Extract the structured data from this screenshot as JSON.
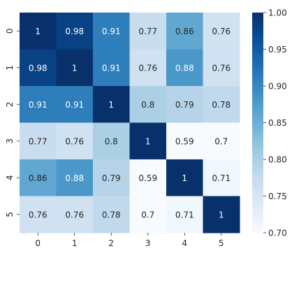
{
  "chart_data": {
    "type": "heatmap",
    "x_labels": [
      "0",
      "1",
      "2",
      "3",
      "4",
      "5"
    ],
    "y_labels": [
      "0",
      "1",
      "2",
      "3",
      "4",
      "5"
    ],
    "values": [
      [
        1,
        0.98,
        0.91,
        0.77,
        0.86,
        0.76
      ],
      [
        0.98,
        1,
        0.91,
        0.76,
        0.88,
        0.76
      ],
      [
        0.91,
        0.91,
        1,
        0.8,
        0.79,
        0.78
      ],
      [
        0.77,
        0.76,
        0.8,
        1,
        0.59,
        0.7
      ],
      [
        0.86,
        0.88,
        0.79,
        0.59,
        1,
        0.71
      ],
      [
        0.76,
        0.76,
        0.78,
        0.7,
        0.71,
        1
      ]
    ],
    "cell_labels": [
      [
        "1",
        "0.98",
        "0.91",
        "0.77",
        "0.86",
        "0.76"
      ],
      [
        "0.98",
        "1",
        "0.91",
        "0.76",
        "0.88",
        "0.76"
      ],
      [
        "0.91",
        "0.91",
        "1",
        "0.8",
        "0.79",
        "0.78"
      ],
      [
        "0.77",
        "0.76",
        "0.8",
        "1",
        "0.59",
        "0.7"
      ],
      [
        "0.86",
        "0.88",
        "0.79",
        "0.59",
        "1",
        "0.71"
      ],
      [
        "0.76",
        "0.76",
        "0.78",
        "0.7",
        "0.71",
        "1"
      ]
    ],
    "colorscale": "Blues",
    "vmin": 0.7,
    "vmax": 1.0,
    "colorbar_ticks": [
      0.7,
      0.75,
      0.8,
      0.85,
      0.9,
      0.95,
      1.0
    ],
    "colorbar_tick_labels": [
      "0.70",
      "0.75",
      "0.80",
      "0.85",
      "0.90",
      "0.95",
      "1.00"
    ],
    "title": "",
    "xlabel": "",
    "ylabel": ""
  }
}
